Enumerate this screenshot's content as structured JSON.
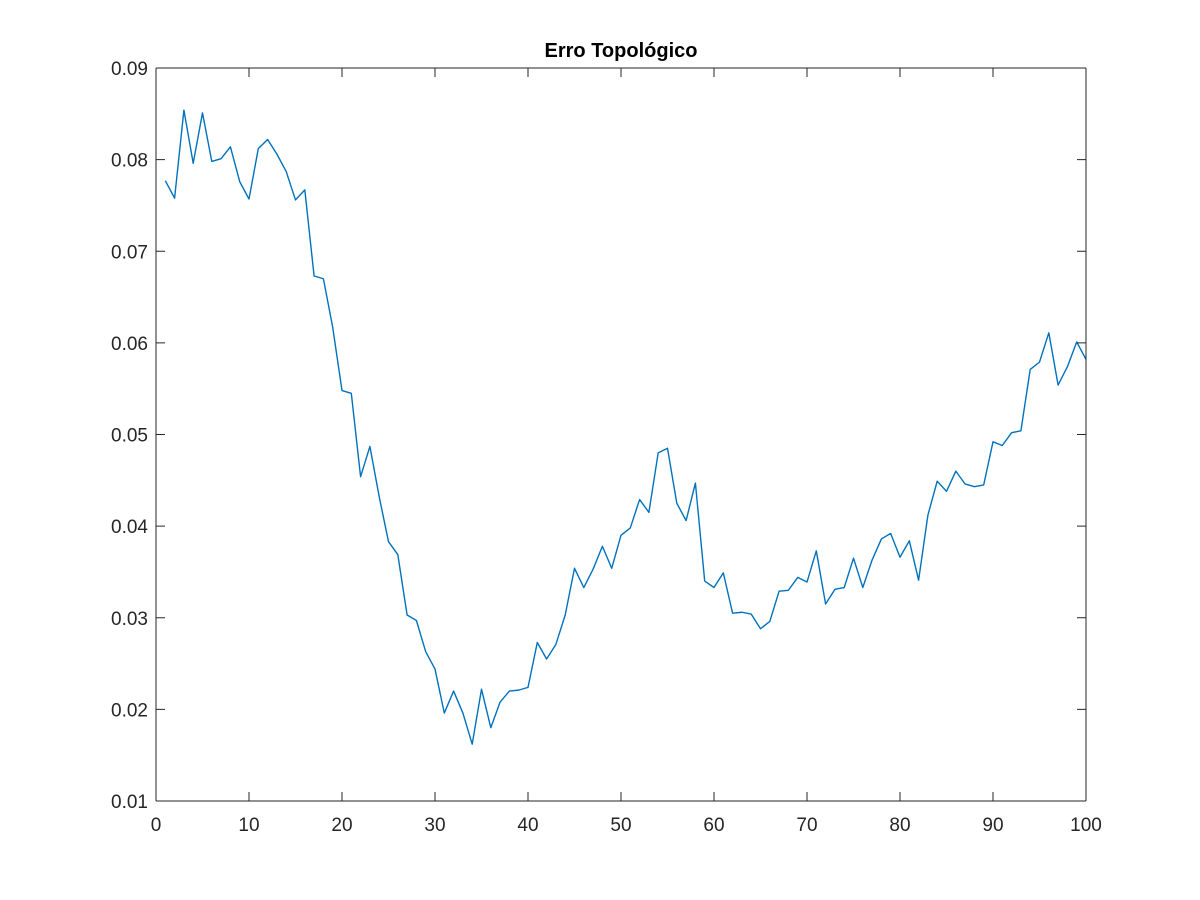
{
  "chart_data": {
    "type": "line",
    "title": "Erro Topológico",
    "xlabel": "",
    "ylabel": "",
    "xlim": [
      0,
      100
    ],
    "ylim": [
      0.01,
      0.09
    ],
    "x_ticks": [
      0,
      10,
      20,
      30,
      40,
      50,
      60,
      70,
      80,
      90,
      100
    ],
    "y_ticks": [
      0.01,
      0.02,
      0.03,
      0.04,
      0.05,
      0.06,
      0.07,
      0.08,
      0.09
    ],
    "x_tick_labels": [
      "0",
      "10",
      "20",
      "30",
      "40",
      "50",
      "60",
      "70",
      "80",
      "90",
      "100"
    ],
    "y_tick_labels": [
      "0.01",
      "0.02",
      "0.03",
      "0.04",
      "0.05",
      "0.06",
      "0.07",
      "0.08",
      "0.09"
    ],
    "grid": false,
    "box": true,
    "line_color": "#0072BD",
    "series": [
      {
        "x": [
          1,
          2,
          3,
          4,
          5,
          6,
          7,
          8,
          9,
          10,
          11,
          12,
          13,
          14,
          15,
          16,
          17,
          18,
          19,
          20,
          21,
          22,
          23,
          24,
          25,
          26,
          27,
          28,
          29,
          30,
          31,
          32,
          33,
          34,
          35,
          36,
          37,
          38,
          39,
          40,
          41,
          42,
          43,
          44,
          45,
          46,
          47,
          48,
          49,
          50,
          51,
          52,
          53,
          54,
          55,
          56,
          57,
          58,
          59,
          60,
          61,
          62,
          63,
          64,
          65,
          66,
          67,
          68,
          69,
          70,
          71,
          72,
          73,
          74,
          75,
          76,
          77,
          78,
          79,
          80,
          81,
          82,
          83,
          84,
          85,
          86,
          87,
          88,
          89,
          90,
          91,
          92,
          93,
          94,
          95,
          96,
          97,
          98,
          99,
          100
        ],
        "values": [
          0.0777,
          0.0758,
          0.0854,
          0.0796,
          0.0851,
          0.0798,
          0.0801,
          0.0814,
          0.0776,
          0.0757,
          0.0812,
          0.0822,
          0.0806,
          0.0787,
          0.0756,
          0.0767,
          0.0673,
          0.067,
          0.0617,
          0.0548,
          0.0545,
          0.0454,
          0.0487,
          0.0432,
          0.0383,
          0.0369,
          0.0303,
          0.0297,
          0.0263,
          0.0244,
          0.0196,
          0.022,
          0.0196,
          0.0162,
          0.0222,
          0.018,
          0.0208,
          0.022,
          0.0221,
          0.0224,
          0.0273,
          0.0255,
          0.0271,
          0.0303,
          0.0354,
          0.0333,
          0.0353,
          0.0378,
          0.0354,
          0.039,
          0.0398,
          0.0429,
          0.0415,
          0.048,
          0.0485,
          0.0425,
          0.0406,
          0.0447,
          0.034,
          0.0333,
          0.0349,
          0.0305,
          0.0306,
          0.0304,
          0.0288,
          0.0296,
          0.0329,
          0.033,
          0.0344,
          0.0339,
          0.0373,
          0.0315,
          0.0331,
          0.0333,
          0.0365,
          0.0333,
          0.0363,
          0.0386,
          0.0392,
          0.0366,
          0.0384,
          0.0341,
          0.0412,
          0.0449,
          0.0438,
          0.046,
          0.0446,
          0.0443,
          0.0445,
          0.0492,
          0.0488,
          0.0502,
          0.0504,
          0.0571,
          0.0579,
          0.0611,
          0.0554,
          0.0574,
          0.0601,
          0.0582
        ]
      }
    ]
  }
}
